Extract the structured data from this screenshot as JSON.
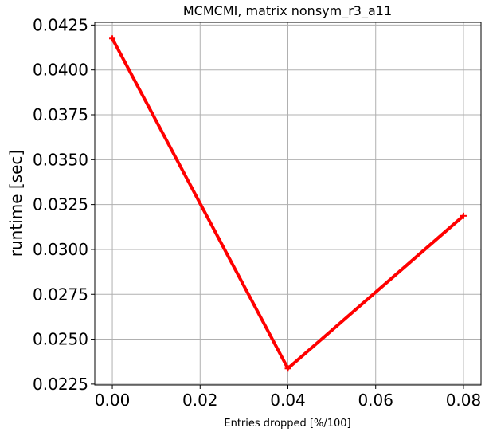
{
  "chart_data": {
    "type": "line",
    "title": "MCMCMI, matrix nonsym_r3_a11",
    "xlabel": "Entries dropped [%/100]",
    "ylabel": "runtime [sec]",
    "xlim": [
      -0.004,
      0.084
    ],
    "ylim": [
      0.02245,
      0.04265
    ],
    "xticks": [
      0.0,
      0.02,
      0.04,
      0.06,
      0.08
    ],
    "xtick_labels": [
      "0.00",
      "0.02",
      "0.04",
      "0.06",
      "0.08"
    ],
    "yticks": [
      0.0225,
      0.025,
      0.0275,
      0.03,
      0.0325,
      0.035,
      0.0375,
      0.04,
      0.0425
    ],
    "ytick_labels": [
      "0.0225",
      "0.0250",
      "0.0275",
      "0.0300",
      "0.0325",
      "0.0350",
      "0.0375",
      "0.0400",
      "0.0425"
    ],
    "grid": true,
    "series": [
      {
        "color": "#ff0000",
        "marker": "+",
        "x": [
          0.0,
          0.04,
          0.08
        ],
        "y": [
          0.04175,
          0.02337,
          0.03187
        ]
      }
    ]
  }
}
